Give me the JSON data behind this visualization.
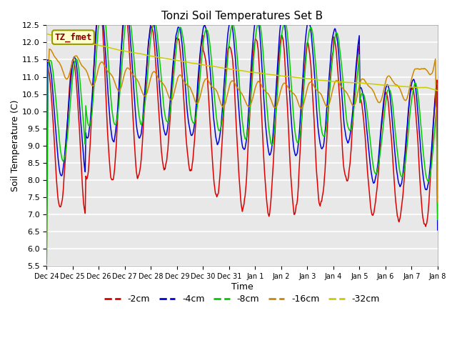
{
  "title": "Tonzi Soil Temperatures Set B",
  "xlabel": "Time",
  "ylabel": "Soil Temperature (C)",
  "colors": {
    "-2cm": "#dd0000",
    "-4cm": "#0000dd",
    "-8cm": "#00cc00",
    "-16cm": "#cc8800",
    "-32cm": "#cccc00"
  },
  "legend_label": "TZ_fmet",
  "legend_box_color": "#ffffcc",
  "legend_box_border": "#999900",
  "legend_text_color": "#880000",
  "tick_labels": [
    "Dec 24",
    "Dec 25",
    "Dec 26",
    "Dec 27",
    "Dec 28",
    "Dec 29",
    "Dec 30",
    "Dec 31",
    "Jan 1",
    "Jan 2",
    "Jan 3",
    "Jan 4",
    "Jan 5",
    "Jan 6",
    "Jan 7",
    "Jan 8"
  ],
  "plot_bg_color": "#e8e8e8",
  "grid_color": "#ffffff"
}
